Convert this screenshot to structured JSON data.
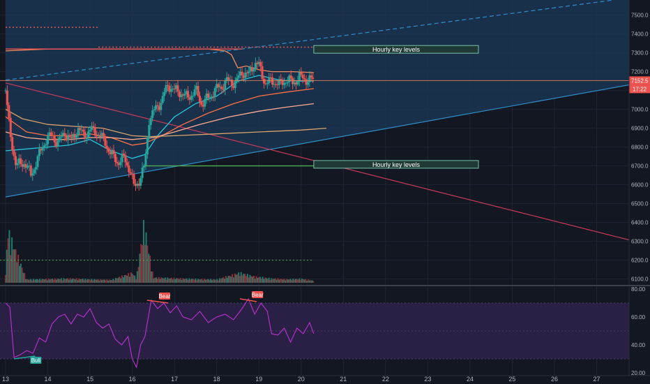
{
  "colors": {
    "background": "#131722",
    "channel_fill": "#1b3552",
    "rsi_band_fill": "#2a1f44",
    "rsi_line": "#b032c7",
    "grid": "#1f2533",
    "axis_text": "#b2b5be",
    "up": "#26a69a",
    "down": "#ef5350",
    "wedge_line": "#2f8fc9",
    "down_trend_line": "#c93a5a",
    "price_line": "#f08a5d",
    "ma_fast": "#26c6da",
    "ma_mid": "#ff7043",
    "ma_slow": "#ffab91",
    "ma_long": "#d7a36a",
    "support_line": "#4caf50",
    "volume_up": "#1e7b6e",
    "volume_down": "#8f2f36",
    "label_box_fill": "#1f3a36",
    "label_box_stroke": "#79c2a6"
  },
  "chart_data": {
    "type": "candlestick",
    "price_axis": {
      "ticks": [
        "7500.0",
        "7400.0",
        "7300.0",
        "7200.0",
        "7100.0",
        "7000.0",
        "6900.0",
        "6800.0",
        "6700.0",
        "6600.0",
        "6500.0",
        "6400.0",
        "6300.0",
        "6200.0",
        "6100.0"
      ],
      "ylim": [
        6080,
        7580
      ]
    },
    "rsi_axis": {
      "ticks": [
        "80.00",
        "60.00",
        "40.00",
        "20.00"
      ],
      "ylim": [
        18,
        82
      ],
      "band": [
        30,
        70
      ]
    },
    "x_axis": {
      "labels": [
        "13",
        "14",
        "15",
        "16",
        "17",
        "18",
        "19",
        "20",
        "21",
        "22",
        "23",
        "24",
        "25",
        "26",
        "27"
      ],
      "range": [
        13,
        27.9
      ]
    },
    "current_price_label": "7152.5",
    "countdown_label": "17:22",
    "current_price": 7152.5,
    "annotations": [
      {
        "text": "Hourly key levels",
        "price": 7320
      },
      {
        "text": "Hourly key levels",
        "price": 6710
      }
    ],
    "divergence_labels": [
      {
        "text": "Bear",
        "x": 16.75,
        "rsi": 72
      },
      {
        "text": "Bear",
        "x": 18.95,
        "rsi": 73
      },
      {
        "text": "Bull",
        "x": 13.7,
        "rsi": 30
      }
    ],
    "key_levels": [
      {
        "price": 7320,
        "x_from": 13.0,
        "x_to": 18.6
      },
      {
        "price": 7330,
        "x_from": 15.2,
        "x_to": 20.3
      },
      {
        "price": 7435,
        "x_from": 13.0,
        "x_to": 15.2
      },
      {
        "price": 6700,
        "x_from": 16.3,
        "x_to": 20.3
      }
    ],
    "trend_lines": [
      {
        "name": "wedge-lower",
        "x1": 13.0,
        "p1": 6535,
        "x2": 27.9,
        "p2": 7135
      },
      {
        "name": "wedge-upper",
        "x1": 13.0,
        "p1": 7155,
        "x2": 27.4,
        "p2": 7580
      },
      {
        "name": "down-trend",
        "x1": 13.0,
        "p1": 7140,
        "x2": 27.9,
        "p2": 6300
      }
    ],
    "candle_anchor_closes": [
      [
        13.0,
        7100
      ],
      [
        13.1,
        6880
      ],
      [
        13.25,
        6700
      ],
      [
        13.45,
        6720
      ],
      [
        13.6,
        6650
      ],
      [
        13.8,
        6760
      ],
      [
        13.95,
        6840
      ],
      [
        14.1,
        6860
      ],
      [
        14.25,
        6820
      ],
      [
        14.4,
        6880
      ],
      [
        14.55,
        6830
      ],
      [
        14.7,
        6900
      ],
      [
        14.85,
        6860
      ],
      [
        15.0,
        6890
      ],
      [
        15.15,
        6880
      ],
      [
        15.35,
        6830
      ],
      [
        15.5,
        6760
      ],
      [
        15.65,
        6720
      ],
      [
        15.8,
        6740
      ],
      [
        15.95,
        6680
      ],
      [
        16.05,
        6580
      ],
      [
        16.15,
        6620
      ],
      [
        16.3,
        6700
      ],
      [
        16.4,
        6950
      ],
      [
        16.55,
        7000
      ],
      [
        16.7,
        7050
      ],
      [
        16.85,
        7130
      ],
      [
        17.0,
        7100
      ],
      [
        17.15,
        7090
      ],
      [
        17.3,
        7060
      ],
      [
        17.5,
        7100
      ],
      [
        17.65,
        7030
      ],
      [
        17.8,
        7060
      ],
      [
        17.95,
        7100
      ],
      [
        18.1,
        7120
      ],
      [
        18.25,
        7150
      ],
      [
        18.45,
        7140
      ],
      [
        18.6,
        7200
      ],
      [
        18.75,
        7180
      ],
      [
        18.9,
        7250
      ],
      [
        19.0,
        7230
      ],
      [
        19.15,
        7140
      ],
      [
        19.35,
        7150
      ],
      [
        19.5,
        7130
      ],
      [
        19.65,
        7160
      ],
      [
        19.8,
        7140
      ],
      [
        19.95,
        7170
      ],
      [
        20.1,
        7160
      ],
      [
        20.3,
        7152.5
      ]
    ],
    "volume_anchor": [
      [
        13.0,
        310
      ],
      [
        13.05,
        2200
      ],
      [
        13.5,
        140
      ],
      [
        14.0,
        160
      ],
      [
        14.5,
        180
      ],
      [
        15.0,
        150
      ],
      [
        15.5,
        120
      ],
      [
        16.0,
        420
      ],
      [
        16.1,
        180
      ],
      [
        16.28,
        2500
      ],
      [
        16.5,
        220
      ],
      [
        17.0,
        190
      ],
      [
        17.5,
        160
      ],
      [
        18.0,
        140
      ],
      [
        18.55,
        420
      ],
      [
        18.9,
        260
      ],
      [
        19.3,
        180
      ],
      [
        19.7,
        150
      ],
      [
        20.0,
        170
      ],
      [
        20.3,
        90
      ]
    ],
    "ma_series": [
      {
        "name": "ma-fast",
        "pts": [
          [
            13.0,
            6780
          ],
          [
            13.5,
            6790
          ],
          [
            14.0,
            6800
          ],
          [
            14.5,
            6810
          ],
          [
            15.0,
            6840
          ],
          [
            15.5,
            6780
          ],
          [
            16.0,
            6740
          ],
          [
            16.3,
            6760
          ],
          [
            16.6,
            6860
          ],
          [
            17.0,
            6960
          ],
          [
            17.5,
            7030
          ],
          [
            18.0,
            7070
          ],
          [
            18.5,
            7150
          ],
          [
            19.0,
            7180
          ],
          [
            19.5,
            7155
          ],
          [
            20.0,
            7150
          ],
          [
            20.3,
            7150
          ]
        ]
      },
      {
        "name": "ma-mid",
        "pts": [
          [
            13.0,
            6960
          ],
          [
            13.5,
            6880
          ],
          [
            14.0,
            6860
          ],
          [
            14.5,
            6860
          ],
          [
            15.0,
            6870
          ],
          [
            15.5,
            6850
          ],
          [
            16.0,
            6810
          ],
          [
            16.3,
            6820
          ],
          [
            16.7,
            6860
          ],
          [
            17.2,
            6920
          ],
          [
            17.8,
            6980
          ],
          [
            18.4,
            7030
          ],
          [
            19.0,
            7070
          ],
          [
            19.6,
            7090
          ],
          [
            20.3,
            7110
          ]
        ]
      },
      {
        "name": "ma-slow",
        "pts": [
          [
            13.0,
            6880
          ],
          [
            13.5,
            6850
          ],
          [
            14.0,
            6840
          ],
          [
            14.5,
            6840
          ],
          [
            15.0,
            6850
          ],
          [
            15.5,
            6850
          ],
          [
            16.0,
            6840
          ],
          [
            16.5,
            6850
          ],
          [
            17.0,
            6880
          ],
          [
            17.6,
            6920
          ],
          [
            18.3,
            6960
          ],
          [
            19.0,
            6990
          ],
          [
            19.6,
            7010
          ],
          [
            20.3,
            7030
          ]
        ]
      },
      {
        "name": "ma-long",
        "pts": [
          [
            13.0,
            7000
          ],
          [
            13.4,
            6950
          ],
          [
            14.0,
            6920
          ],
          [
            14.6,
            6910
          ],
          [
            15.3,
            6900
          ],
          [
            16.0,
            6860
          ],
          [
            16.4,
            6855
          ],
          [
            17.0,
            6860
          ],
          [
            18.0,
            6870
          ],
          [
            19.0,
            6880
          ],
          [
            20.0,
            6890
          ],
          [
            20.6,
            6900
          ]
        ]
      },
      {
        "name": "price-curve",
        "pts": [
          [
            13.0,
            7310
          ],
          [
            14.0,
            7320
          ],
          [
            15.0,
            7320
          ],
          [
            16.0,
            7320
          ],
          [
            17.0,
            7320
          ],
          [
            17.8,
            7320
          ],
          [
            18.2,
            7310
          ],
          [
            18.35,
            7290
          ],
          [
            18.5,
            7220
          ],
          [
            18.7,
            7230
          ],
          [
            19.0,
            7210
          ],
          [
            19.3,
            7200
          ],
          [
            19.8,
            7200
          ],
          [
            20.3,
            7195
          ]
        ]
      }
    ],
    "rsi_series": [
      [
        13.0,
        70
      ],
      [
        13.1,
        67
      ],
      [
        13.2,
        31
      ],
      [
        13.35,
        33
      ],
      [
        13.5,
        36
      ],
      [
        13.65,
        34
      ],
      [
        13.8,
        45
      ],
      [
        13.95,
        42
      ],
      [
        14.1,
        55
      ],
      [
        14.25,
        60
      ],
      [
        14.4,
        62
      ],
      [
        14.55,
        55
      ],
      [
        14.7,
        62
      ],
      [
        14.85,
        60
      ],
      [
        15.0,
        66
      ],
      [
        15.15,
        56
      ],
      [
        15.3,
        52
      ],
      [
        15.45,
        55
      ],
      [
        15.6,
        44
      ],
      [
        15.75,
        40
      ],
      [
        15.9,
        46
      ],
      [
        16.0,
        30
      ],
      [
        16.1,
        24
      ],
      [
        16.2,
        40
      ],
      [
        16.3,
        46
      ],
      [
        16.45,
        72
      ],
      [
        16.6,
        66
      ],
      [
        16.75,
        70
      ],
      [
        16.9,
        63
      ],
      [
        17.05,
        68
      ],
      [
        17.2,
        60
      ],
      [
        17.4,
        58
      ],
      [
        17.6,
        64
      ],
      [
        17.8,
        56
      ],
      [
        18.0,
        60
      ],
      [
        18.2,
        62
      ],
      [
        18.4,
        58
      ],
      [
        18.6,
        66
      ],
      [
        18.75,
        73
      ],
      [
        18.9,
        62
      ],
      [
        19.05,
        70
      ],
      [
        19.2,
        64
      ],
      [
        19.3,
        48
      ],
      [
        19.45,
        47
      ],
      [
        19.6,
        52
      ],
      [
        19.75,
        42
      ],
      [
        19.9,
        52
      ],
      [
        20.05,
        48
      ],
      [
        20.2,
        56
      ],
      [
        20.3,
        48
      ]
    ]
  }
}
